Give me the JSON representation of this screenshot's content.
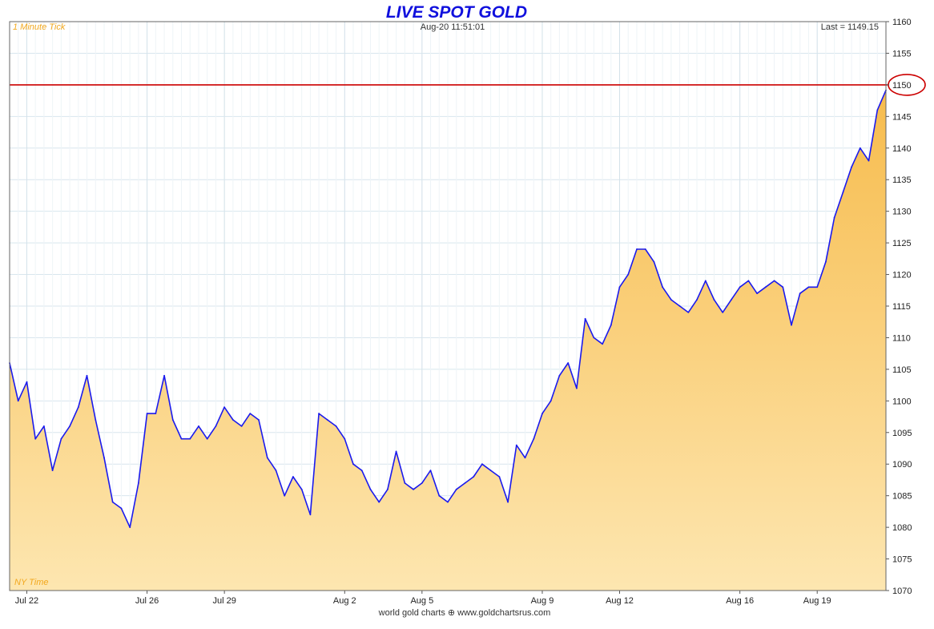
{
  "chart_data": {
    "type": "area",
    "title": "LIVE SPOT GOLD",
    "timeframe_label": "1 Minute Tick",
    "timestamp": "Aug-20  11:51:01",
    "last_label": "Last = 1149.15",
    "timezone_label": "NY Time",
    "footer": "world gold charts ⊕ www.goldchartsrus.com",
    "ylim": [
      1070,
      1160
    ],
    "yticks": [
      1070,
      1075,
      1080,
      1085,
      1090,
      1095,
      1100,
      1105,
      1110,
      1115,
      1120,
      1125,
      1130,
      1135,
      1140,
      1145,
      1150,
      1155,
      1160
    ],
    "x_ticks": [
      {
        "label": "Jul 22",
        "t": 2
      },
      {
        "label": "Jul 26",
        "t": 16
      },
      {
        "label": "Jul 29",
        "t": 25
      },
      {
        "label": "Aug 2",
        "t": 39
      },
      {
        "label": "Aug 5",
        "t": 48
      },
      {
        "label": "Aug 9",
        "t": 62
      },
      {
        "label": "Aug 12",
        "t": 71
      },
      {
        "label": "Aug 16",
        "t": 85
      },
      {
        "label": "Aug 19",
        "t": 94
      }
    ],
    "x_range": [
      0,
      102
    ],
    "reference_line": {
      "value": 1150,
      "color": "#cc0000",
      "label": "1150"
    },
    "series": [
      {
        "color": "#1a1aee",
        "points": [
          [
            0,
            1106
          ],
          [
            1,
            1100
          ],
          [
            2,
            1103
          ],
          [
            3,
            1094
          ],
          [
            4,
            1096
          ],
          [
            5,
            1089
          ],
          [
            6,
            1094
          ],
          [
            7,
            1096
          ],
          [
            8,
            1099
          ],
          [
            9,
            1104
          ],
          [
            10,
            1097
          ],
          [
            11,
            1091
          ],
          [
            12,
            1084
          ],
          [
            13,
            1083
          ],
          [
            14,
            1080
          ],
          [
            15,
            1087
          ],
          [
            16,
            1098
          ],
          [
            17,
            1098
          ],
          [
            18,
            1104
          ],
          [
            19,
            1097
          ],
          [
            20,
            1094
          ],
          [
            21,
            1094
          ],
          [
            22,
            1096
          ],
          [
            23,
            1094
          ],
          [
            24,
            1096
          ],
          [
            25,
            1099
          ],
          [
            26,
            1097
          ],
          [
            27,
            1096
          ],
          [
            28,
            1098
          ],
          [
            29,
            1097
          ],
          [
            30,
            1091
          ],
          [
            31,
            1089
          ],
          [
            32,
            1085
          ],
          [
            33,
            1088
          ],
          [
            34,
            1086
          ],
          [
            35,
            1082
          ],
          [
            36,
            1098
          ],
          [
            37,
            1097
          ],
          [
            38,
            1096
          ],
          [
            39,
            1094
          ],
          [
            40,
            1090
          ],
          [
            41,
            1089
          ],
          [
            42,
            1086
          ],
          [
            43,
            1084
          ],
          [
            44,
            1086
          ],
          [
            45,
            1092
          ],
          [
            46,
            1087
          ],
          [
            47,
            1086
          ],
          [
            48,
            1087
          ],
          [
            49,
            1089
          ],
          [
            50,
            1085
          ],
          [
            51,
            1084
          ],
          [
            52,
            1086
          ],
          [
            53,
            1087
          ],
          [
            54,
            1088
          ],
          [
            55,
            1090
          ],
          [
            56,
            1089
          ],
          [
            57,
            1088
          ],
          [
            58,
            1084
          ],
          [
            59,
            1093
          ],
          [
            60,
            1091
          ],
          [
            61,
            1094
          ],
          [
            62,
            1098
          ],
          [
            63,
            1100
          ],
          [
            64,
            1104
          ],
          [
            65,
            1106
          ],
          [
            66,
            1102
          ],
          [
            67,
            1113
          ],
          [
            68,
            1110
          ],
          [
            69,
            1109
          ],
          [
            70,
            1112
          ],
          [
            71,
            1118
          ],
          [
            72,
            1120
          ],
          [
            73,
            1124
          ],
          [
            74,
            1124
          ],
          [
            75,
            1122
          ],
          [
            76,
            1118
          ],
          [
            77,
            1116
          ],
          [
            78,
            1115
          ],
          [
            79,
            1114
          ],
          [
            80,
            1116
          ],
          [
            81,
            1119
          ],
          [
            82,
            1116
          ],
          [
            83,
            1114
          ],
          [
            84,
            1116
          ],
          [
            85,
            1118
          ],
          [
            86,
            1119
          ],
          [
            87,
            1117
          ],
          [
            88,
            1118
          ],
          [
            89,
            1119
          ],
          [
            90,
            1118
          ],
          [
            91,
            1112
          ],
          [
            92,
            1117
          ],
          [
            93,
            1118
          ],
          [
            94,
            1118
          ],
          [
            95,
            1122
          ],
          [
            96,
            1129
          ],
          [
            97,
            1133
          ],
          [
            98,
            1137
          ],
          [
            99,
            1140
          ],
          [
            100,
            1138
          ],
          [
            101,
            1146
          ],
          [
            102,
            1149.15
          ]
        ]
      }
    ]
  }
}
